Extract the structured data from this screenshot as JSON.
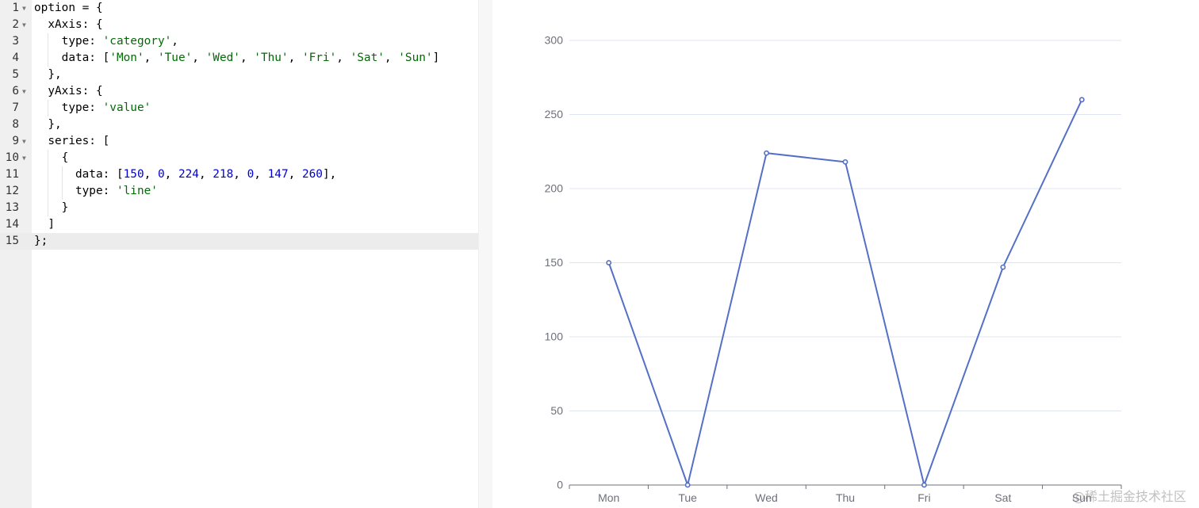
{
  "editor": {
    "lines": [
      {
        "num": "1",
        "fold": true,
        "tokens": [
          {
            "t": "option = {",
            "c": "plain"
          }
        ]
      },
      {
        "num": "2",
        "fold": true,
        "tokens": [
          {
            "t": "  xAxis: {",
            "c": "plain"
          }
        ]
      },
      {
        "num": "3",
        "fold": false,
        "tokens": [
          {
            "t": "    type: ",
            "c": "plain"
          },
          {
            "t": "'category'",
            "c": "str"
          },
          {
            "t": ",",
            "c": "plain"
          }
        ]
      },
      {
        "num": "4",
        "fold": false,
        "tokens": [
          {
            "t": "    data: [",
            "c": "plain"
          },
          {
            "t": "'Mon'",
            "c": "str"
          },
          {
            "t": ", ",
            "c": "plain"
          },
          {
            "t": "'Tue'",
            "c": "str"
          },
          {
            "t": ", ",
            "c": "plain"
          },
          {
            "t": "'Wed'",
            "c": "str"
          },
          {
            "t": ", ",
            "c": "plain"
          },
          {
            "t": "'Thu'",
            "c": "str"
          },
          {
            "t": ", ",
            "c": "plain"
          },
          {
            "t": "'Fri'",
            "c": "str"
          },
          {
            "t": ", ",
            "c": "plain"
          },
          {
            "t": "'Sat'",
            "c": "str"
          },
          {
            "t": ", ",
            "c": "plain"
          },
          {
            "t": "'Sun'",
            "c": "str"
          },
          {
            "t": "]",
            "c": "plain"
          }
        ]
      },
      {
        "num": "5",
        "fold": false,
        "tokens": [
          {
            "t": "  },",
            "c": "plain"
          }
        ]
      },
      {
        "num": "6",
        "fold": true,
        "tokens": [
          {
            "t": "  yAxis: {",
            "c": "plain"
          }
        ]
      },
      {
        "num": "7",
        "fold": false,
        "tokens": [
          {
            "t": "    type: ",
            "c": "plain"
          },
          {
            "t": "'value'",
            "c": "str"
          }
        ]
      },
      {
        "num": "8",
        "fold": false,
        "tokens": [
          {
            "t": "  },",
            "c": "plain"
          }
        ]
      },
      {
        "num": "9",
        "fold": true,
        "tokens": [
          {
            "t": "  series: [",
            "c": "plain"
          }
        ]
      },
      {
        "num": "10",
        "fold": true,
        "tokens": [
          {
            "t": "    {",
            "c": "plain"
          }
        ]
      },
      {
        "num": "11",
        "fold": false,
        "tokens": [
          {
            "t": "      data: [",
            "c": "plain"
          },
          {
            "t": "150",
            "c": "num"
          },
          {
            "t": ", ",
            "c": "plain"
          },
          {
            "t": "0",
            "c": "num"
          },
          {
            "t": ", ",
            "c": "plain"
          },
          {
            "t": "224",
            "c": "num"
          },
          {
            "t": ", ",
            "c": "plain"
          },
          {
            "t": "218",
            "c": "num"
          },
          {
            "t": ", ",
            "c": "plain"
          },
          {
            "t": "0",
            "c": "num"
          },
          {
            "t": ", ",
            "c": "plain"
          },
          {
            "t": "147",
            "c": "num"
          },
          {
            "t": ", ",
            "c": "plain"
          },
          {
            "t": "260",
            "c": "num"
          },
          {
            "t": "],",
            "c": "plain"
          }
        ]
      },
      {
        "num": "12",
        "fold": false,
        "tokens": [
          {
            "t": "      type: ",
            "c": "plain"
          },
          {
            "t": "'line'",
            "c": "str"
          }
        ]
      },
      {
        "num": "13",
        "fold": false,
        "tokens": [
          {
            "t": "    }",
            "c": "plain"
          }
        ]
      },
      {
        "num": "14",
        "fold": false,
        "tokens": [
          {
            "t": "  ]",
            "c": "plain"
          }
        ]
      },
      {
        "num": "15",
        "fold": false,
        "active": true,
        "tokens": [
          {
            "t": "};",
            "c": "plain"
          }
        ]
      }
    ]
  },
  "chart_data": {
    "type": "line",
    "categories": [
      "Mon",
      "Tue",
      "Wed",
      "Thu",
      "Fri",
      "Sat",
      "Sun"
    ],
    "series": [
      {
        "values": [
          150,
          0,
          224,
          218,
          0,
          147,
          260
        ]
      }
    ],
    "y_ticks": [
      "0",
      "50",
      "100",
      "150",
      "200",
      "250",
      "300"
    ],
    "ylim": [
      0,
      300
    ],
    "grid": true,
    "line_color": "#5470c6"
  },
  "watermark": "@稀土掘金技术社区",
  "colors": {
    "string": "#036a07",
    "number": "#0000cd",
    "gutter_bg": "#f0f0f0",
    "axis_text": "#6e7079",
    "grid": "#e0e6f1"
  }
}
